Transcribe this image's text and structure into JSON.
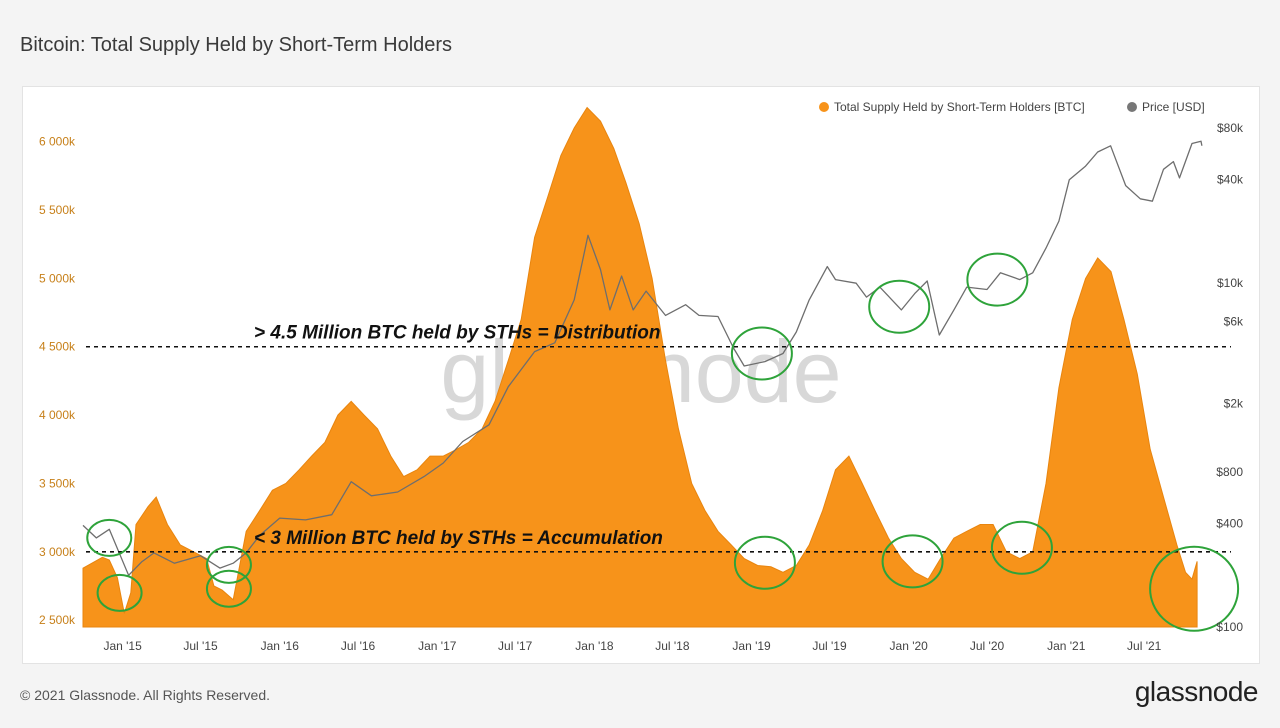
{
  "header": {
    "title": "Bitcoin: Total Supply Held by Short-Term Holders"
  },
  "footer": {
    "copyright": "© 2021 Glassnode. All Rights Reserved.",
    "logo": "glassnode"
  },
  "chart_data": {
    "type": "area",
    "title": "Bitcoin: Total Supply Held by Short-Term Holders",
    "watermark": "glassnode",
    "legend": [
      {
        "name": "Total Supply Held by Short-Term Holders [BTC]",
        "color": "#f7931a"
      },
      {
        "name": "Price [USD]",
        "color": "#777777"
      }
    ],
    "legend_position": "top-right",
    "x_ticks": [
      "Jan '15",
      "Jul '15",
      "Jan '16",
      "Jul '16",
      "Jan '17",
      "Jul '17",
      "Jan '18",
      "Jul '18",
      "Jan '19",
      "Jul '19",
      "Jan '20",
      "Jul '20",
      "Jan '21",
      "Jul '21"
    ],
    "x_tick_dates": [
      "2015-01-01",
      "2015-07-01",
      "2016-01-01",
      "2016-07-01",
      "2017-01-01",
      "2017-07-01",
      "2018-01-01",
      "2018-07-01",
      "2019-01-01",
      "2019-07-01",
      "2020-01-01",
      "2020-07-01",
      "2021-01-01",
      "2021-07-01"
    ],
    "x_range": [
      "2014-10-01",
      "2021-11-10"
    ],
    "y_left": {
      "ticks": [
        "2 500k",
        "3 000k",
        "3 500k",
        "4 000k",
        "4 500k",
        "5 000k",
        "5 500k",
        "6 000k"
      ],
      "tick_values": [
        2500000,
        3000000,
        3500000,
        4000000,
        4500000,
        5000000,
        5500000,
        6000000
      ],
      "range": [
        2450000,
        6400000
      ]
    },
    "y_right": {
      "scale": "log",
      "ticks": [
        "$100",
        "$400",
        "$800",
        "$2k",
        "$6k",
        "$10k",
        "$40k",
        "$80k"
      ],
      "tick_values": [
        100,
        400,
        800,
        2000,
        6000,
        10000,
        40000,
        80000
      ],
      "range": [
        100,
        80000
      ]
    },
    "series": [
      {
        "name": "Total Supply Held by Short-Term Holders [BTC]",
        "axis": "left",
        "color": "#f7931a",
        "points": [
          [
            "2014-10-01",
            2880000
          ],
          [
            "2014-11-15",
            2960000
          ],
          [
            "2014-12-01",
            2940000
          ],
          [
            "2014-12-20",
            2810000
          ],
          [
            "2015-01-05",
            2550000
          ],
          [
            "2015-01-20",
            2700000
          ],
          [
            "2015-02-01",
            3200000
          ],
          [
            "2015-03-01",
            3330000
          ],
          [
            "2015-03-20",
            3400000
          ],
          [
            "2015-04-15",
            3200000
          ],
          [
            "2015-05-15",
            3050000
          ],
          [
            "2015-06-15",
            3000000
          ],
          [
            "2015-07-15",
            2950000
          ],
          [
            "2015-08-01",
            2750000
          ],
          [
            "2015-08-20",
            2720000
          ],
          [
            "2015-09-15",
            2650000
          ],
          [
            "2015-10-15",
            3150000
          ],
          [
            "2015-11-15",
            3300000
          ],
          [
            "2015-12-15",
            3450000
          ],
          [
            "2016-01-15",
            3500000
          ],
          [
            "2016-02-15",
            3600000
          ],
          [
            "2016-03-15",
            3700000
          ],
          [
            "2016-04-15",
            3800000
          ],
          [
            "2016-05-15",
            4000000
          ],
          [
            "2016-06-15",
            4100000
          ],
          [
            "2016-07-15",
            4000000
          ],
          [
            "2016-08-15",
            3900000
          ],
          [
            "2016-09-15",
            3700000
          ],
          [
            "2016-10-15",
            3550000
          ],
          [
            "2016-11-15",
            3600000
          ],
          [
            "2016-12-15",
            3700000
          ],
          [
            "2017-01-15",
            3700000
          ],
          [
            "2017-02-15",
            3750000
          ],
          [
            "2017-03-15",
            3800000
          ],
          [
            "2017-04-15",
            3900000
          ],
          [
            "2017-05-15",
            4100000
          ],
          [
            "2017-06-15",
            4400000
          ],
          [
            "2017-07-15",
            4700000
          ],
          [
            "2017-08-15",
            5300000
          ],
          [
            "2017-09-15",
            5600000
          ],
          [
            "2017-10-15",
            5900000
          ],
          [
            "2017-11-15",
            6100000
          ],
          [
            "2017-12-15",
            6250000
          ],
          [
            "2018-01-15",
            6150000
          ],
          [
            "2018-02-15",
            5950000
          ],
          [
            "2018-03-15",
            5700000
          ],
          [
            "2018-04-15",
            5400000
          ],
          [
            "2018-05-15",
            5000000
          ],
          [
            "2018-06-15",
            4400000
          ],
          [
            "2018-07-15",
            3900000
          ],
          [
            "2018-08-15",
            3500000
          ],
          [
            "2018-09-15",
            3300000
          ],
          [
            "2018-10-15",
            3150000
          ],
          [
            "2018-11-15",
            3050000
          ],
          [
            "2018-12-15",
            2950000
          ],
          [
            "2019-01-15",
            2900000
          ],
          [
            "2019-02-15",
            2890000
          ],
          [
            "2019-03-15",
            2850000
          ],
          [
            "2019-04-15",
            2900000
          ],
          [
            "2019-05-15",
            3050000
          ],
          [
            "2019-06-15",
            3300000
          ],
          [
            "2019-07-15",
            3600000
          ],
          [
            "2019-08-15",
            3700000
          ],
          [
            "2019-09-15",
            3500000
          ],
          [
            "2019-10-15",
            3300000
          ],
          [
            "2019-11-15",
            3100000
          ],
          [
            "2019-12-15",
            2950000
          ],
          [
            "2020-01-15",
            2850000
          ],
          [
            "2020-02-15",
            2800000
          ],
          [
            "2020-03-15",
            2950000
          ],
          [
            "2020-04-15",
            3100000
          ],
          [
            "2020-05-15",
            3150000
          ],
          [
            "2020-06-15",
            3200000
          ],
          [
            "2020-07-15",
            3200000
          ],
          [
            "2020-08-15",
            3000000
          ],
          [
            "2020-09-15",
            2950000
          ],
          [
            "2020-10-15",
            3000000
          ],
          [
            "2020-11-15",
            3500000
          ],
          [
            "2020-12-15",
            4200000
          ],
          [
            "2021-01-15",
            4700000
          ],
          [
            "2021-02-15",
            5000000
          ],
          [
            "2021-03-15",
            5150000
          ],
          [
            "2021-04-15",
            5050000
          ],
          [
            "2021-05-15",
            4700000
          ],
          [
            "2021-06-15",
            4300000
          ],
          [
            "2021-07-15",
            3750000
          ],
          [
            "2021-08-15",
            3400000
          ],
          [
            "2021-09-15",
            3050000
          ],
          [
            "2021-10-05",
            2850000
          ],
          [
            "2021-10-20",
            2800000
          ],
          [
            "2021-11-01",
            2930000
          ]
        ]
      },
      {
        "name": "Price [USD]",
        "axis": "right",
        "color": "#777777",
        "points": [
          [
            "2014-10-01",
            390
          ],
          [
            "2014-11-01",
            330
          ],
          [
            "2014-12-01",
            370
          ],
          [
            "2015-01-15",
            200
          ],
          [
            "2015-02-15",
            240
          ],
          [
            "2015-03-15",
            270
          ],
          [
            "2015-05-01",
            235
          ],
          [
            "2015-07-01",
            260
          ],
          [
            "2015-08-15",
            220
          ],
          [
            "2015-09-15",
            235
          ],
          [
            "2015-10-15",
            270
          ],
          [
            "2015-11-15",
            340
          ],
          [
            "2016-01-01",
            430
          ],
          [
            "2016-03-01",
            420
          ],
          [
            "2016-05-01",
            450
          ],
          [
            "2016-06-15",
            700
          ],
          [
            "2016-08-01",
            580
          ],
          [
            "2016-10-01",
            610
          ],
          [
            "2016-12-01",
            750
          ],
          [
            "2017-01-15",
            900
          ],
          [
            "2017-03-01",
            1200
          ],
          [
            "2017-05-01",
            1500
          ],
          [
            "2017-06-15",
            2500
          ],
          [
            "2017-08-15",
            4000
          ],
          [
            "2017-10-01",
            4500
          ],
          [
            "2017-11-15",
            8000
          ],
          [
            "2017-12-17",
            19000
          ],
          [
            "2018-01-15",
            12000
          ],
          [
            "2018-02-06",
            7000
          ],
          [
            "2018-03-05",
            11000
          ],
          [
            "2018-04-01",
            7000
          ],
          [
            "2018-05-01",
            9000
          ],
          [
            "2018-06-15",
            6500
          ],
          [
            "2018-08-01",
            7500
          ],
          [
            "2018-09-01",
            6500
          ],
          [
            "2018-10-15",
            6400
          ],
          [
            "2018-11-20",
            4200
          ],
          [
            "2018-12-15",
            3300
          ],
          [
            "2019-02-01",
            3500
          ],
          [
            "2019-03-15",
            3900
          ],
          [
            "2019-04-15",
            5200
          ],
          [
            "2019-05-15",
            8000
          ],
          [
            "2019-06-26",
            12500
          ],
          [
            "2019-07-15",
            10500
          ],
          [
            "2019-09-01",
            10000
          ],
          [
            "2019-09-25",
            8300
          ],
          [
            "2019-10-26",
            9500
          ],
          [
            "2019-12-15",
            7000
          ],
          [
            "2020-01-15",
            8700
          ],
          [
            "2020-02-13",
            10300
          ],
          [
            "2020-03-12",
            5000
          ],
          [
            "2020-04-15",
            7000
          ],
          [
            "2020-05-15",
            9500
          ],
          [
            "2020-07-01",
            9200
          ],
          [
            "2020-08-01",
            11500
          ],
          [
            "2020-09-15",
            10500
          ],
          [
            "2020-10-15",
            11500
          ],
          [
            "2020-11-15",
            16000
          ],
          [
            "2020-12-15",
            23000
          ],
          [
            "2021-01-08",
            40000
          ],
          [
            "2021-02-15",
            48000
          ],
          [
            "2021-03-15",
            58000
          ],
          [
            "2021-04-14",
            63000
          ],
          [
            "2021-05-19",
            37000
          ],
          [
            "2021-06-22",
            31000
          ],
          [
            "2021-07-20",
            30000
          ],
          [
            "2021-08-15",
            46000
          ],
          [
            "2021-09-07",
            51000
          ],
          [
            "2021-09-21",
            41000
          ],
          [
            "2021-10-20",
            65000
          ],
          [
            "2021-11-10",
            67000
          ],
          [
            "2021-11-12",
            63000
          ]
        ]
      }
    ],
    "reference_lines": [
      {
        "axis": "left",
        "value": 4500000,
        "style": "dashed",
        "label": "> 4.5 Million BTC held by STHs = Distribution"
      },
      {
        "axis": "left",
        "value": 3000000,
        "style": "dashed",
        "label": "< 3 Million BTC held by STHs = Accumulation"
      }
    ],
    "circle_markers": [
      {
        "date": "2014-12-01",
        "axis": "right",
        "value": 330
      },
      {
        "date": "2014-12-25",
        "axis": "left",
        "value": 2700000
      },
      {
        "date": "2015-09-05",
        "axis": "left",
        "value": 2730000
      },
      {
        "date": "2015-09-05",
        "axis": "right",
        "value": 230
      },
      {
        "date": "2019-01-25",
        "axis": "right",
        "value": 3900
      },
      {
        "date": "2019-02-01",
        "axis": "left",
        "value": 2920000
      },
      {
        "date": "2019-12-10",
        "axis": "right",
        "value": 7300
      },
      {
        "date": "2020-01-10",
        "axis": "left",
        "value": 2930000
      },
      {
        "date": "2020-07-25",
        "axis": "right",
        "value": 10500
      },
      {
        "date": "2020-09-20",
        "axis": "left",
        "value": 3030000
      },
      {
        "date": "2021-10-25",
        "axis": "left",
        "value": 2730000
      }
    ],
    "circle_color": "#2ea33a"
  }
}
